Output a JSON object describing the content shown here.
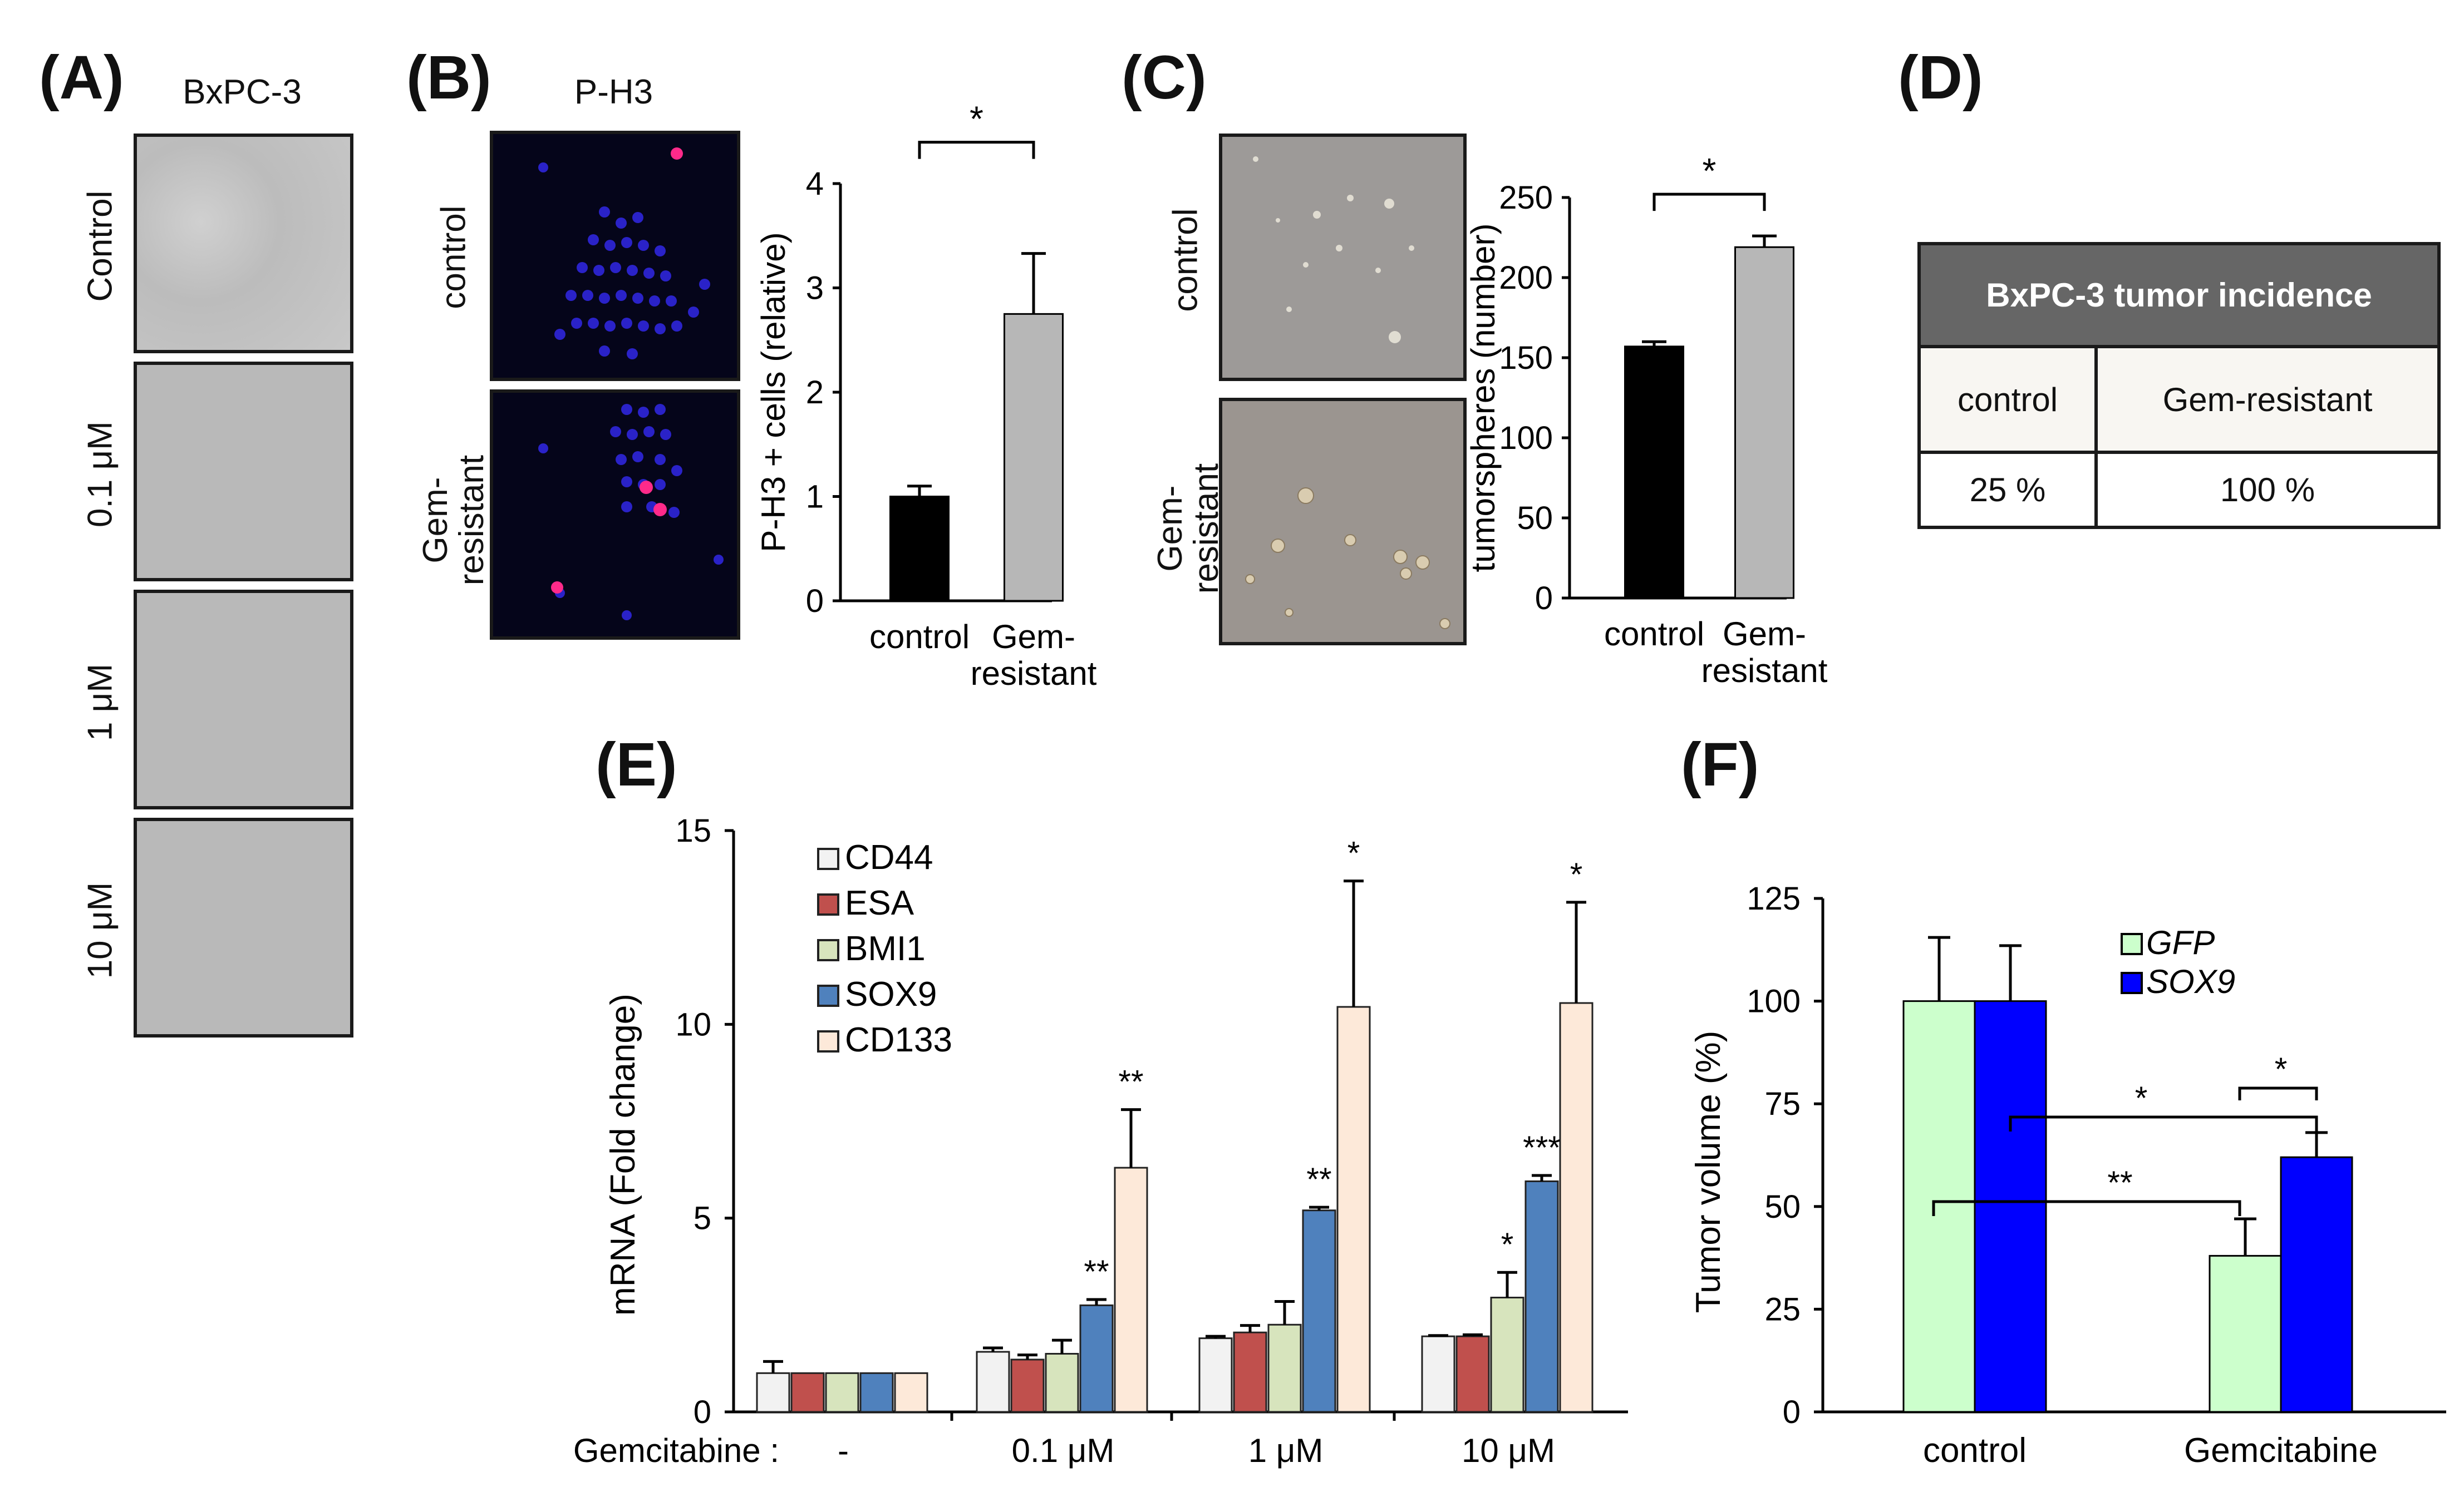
{
  "panels": {
    "A": {
      "label": "(A)",
      "title": "BxPC-3",
      "rows": [
        "Control",
        "0.1 μM",
        "1 μM",
        "10 μM"
      ]
    },
    "B": {
      "label": "(B)",
      "title": "P-H3",
      "rows": [
        "control",
        "Gem-\nresistant"
      ]
    },
    "C": {
      "label": "(C)",
      "rows": [
        "control",
        "Gem-\nresistant"
      ]
    },
    "D": {
      "label": "(D)",
      "table_title": "BxPC-3 tumor incidence",
      "headers": [
        "control",
        "Gem-resistant"
      ],
      "values": [
        "25 %",
        "100 %"
      ]
    },
    "E": {
      "label": "(E)"
    },
    "F": {
      "label": "(F)"
    }
  },
  "colors": {
    "black_bar": "#000000",
    "grey_bar": "#b7b7b7",
    "cd44": "#f2f2f2",
    "esa": "#c0504d",
    "bmi1": "#d7e4bd",
    "sox9": "#4f81bd",
    "cd133": "#fde9d9",
    "gfp": "#ccffcc",
    "sox9_f": "#0000ff",
    "table_header": "#666666",
    "table_body": "#f8f6f2"
  },
  "chart_data": [
    {
      "id": "B",
      "type": "bar",
      "categories": [
        "control",
        "Gem-\nresistant"
      ],
      "values": [
        1.0,
        2.75
      ],
      "errors": [
        0.1,
        0.58
      ],
      "ylabel": "P-H3 + cells (relative)",
      "ylim": [
        0,
        4
      ],
      "yticks": [
        "0",
        "1",
        "2",
        "3",
        "4"
      ],
      "significance": "*"
    },
    {
      "id": "C",
      "type": "bar",
      "categories": [
        "control",
        "Gem-\nresistant"
      ],
      "values": [
        157,
        219
      ],
      "errors": [
        3,
        7
      ],
      "ylabel": "tumorspheres (number)",
      "ylim": [
        0,
        250
      ],
      "yticks": [
        "0",
        "50",
        "100",
        "150",
        "200",
        "250"
      ],
      "significance": "*"
    },
    {
      "id": "E",
      "type": "bar",
      "categories": [
        "-",
        "0.1 μM",
        "1 μM",
        "10 μM"
      ],
      "xprefix": "Gemcitabine :",
      "ylabel": "mRNA (Fold change)",
      "ylim": [
        0,
        15
      ],
      "yticks": [
        "0",
        "5",
        "10",
        "15"
      ],
      "series": [
        {
          "name": "CD44",
          "values": [
            1.0,
            1.55,
            1.9,
            1.95
          ],
          "errors": [
            0.3,
            0.1,
            0.05,
            0.02
          ]
        },
        {
          "name": "ESA",
          "values": [
            1.0,
            1.35,
            2.05,
            1.95
          ],
          "errors": [
            0.0,
            0.12,
            0.18,
            0.04
          ]
        },
        {
          "name": "BMI1",
          "values": [
            1.0,
            1.5,
            2.25,
            2.95
          ],
          "errors": [
            0.0,
            0.35,
            0.6,
            0.65
          ]
        },
        {
          "name": "SOX9",
          "values": [
            1.0,
            2.75,
            5.2,
            5.95
          ],
          "errors": [
            0.0,
            0.15,
            0.08,
            0.15
          ]
        },
        {
          "name": "CD133",
          "values": [
            1.0,
            6.3,
            10.45,
            10.55
          ],
          "errors": [
            0.0,
            1.5,
            3.25,
            2.6
          ]
        }
      ],
      "annotations": [
        {
          "group": 1,
          "series": 3,
          "text": "**"
        },
        {
          "group": 1,
          "series": 4,
          "text": "**"
        },
        {
          "group": 2,
          "series": 3,
          "text": "**"
        },
        {
          "group": 2,
          "series": 4,
          "text": "*"
        },
        {
          "group": 3,
          "series": 2,
          "text": "*"
        },
        {
          "group": 3,
          "series": 3,
          "text": "***"
        },
        {
          "group": 3,
          "series": 4,
          "text": "*"
        }
      ]
    },
    {
      "id": "F",
      "type": "bar",
      "categories": [
        "control",
        "Gemcitabine"
      ],
      "ylabel": "Tumor volume (%)",
      "ylim": [
        0,
        125
      ],
      "yticks": [
        "0",
        "25",
        "50",
        "75",
        "100",
        "125"
      ],
      "series": [
        {
          "name": "GFP",
          "values": [
            100,
            38
          ],
          "errors": [
            15.5,
            9
          ]
        },
        {
          "name": "SOX9",
          "values": [
            100,
            62
          ],
          "errors": [
            13.5,
            6
          ]
        }
      ],
      "brackets": [
        {
          "text": "*",
          "desc": "Gemcitabine GFP vs SOX9"
        },
        {
          "text": "*",
          "desc": "control SOX9 vs Gemcitabine SOX9"
        },
        {
          "text": "**",
          "desc": "control GFP vs Gemcitabine GFP"
        }
      ]
    }
  ]
}
